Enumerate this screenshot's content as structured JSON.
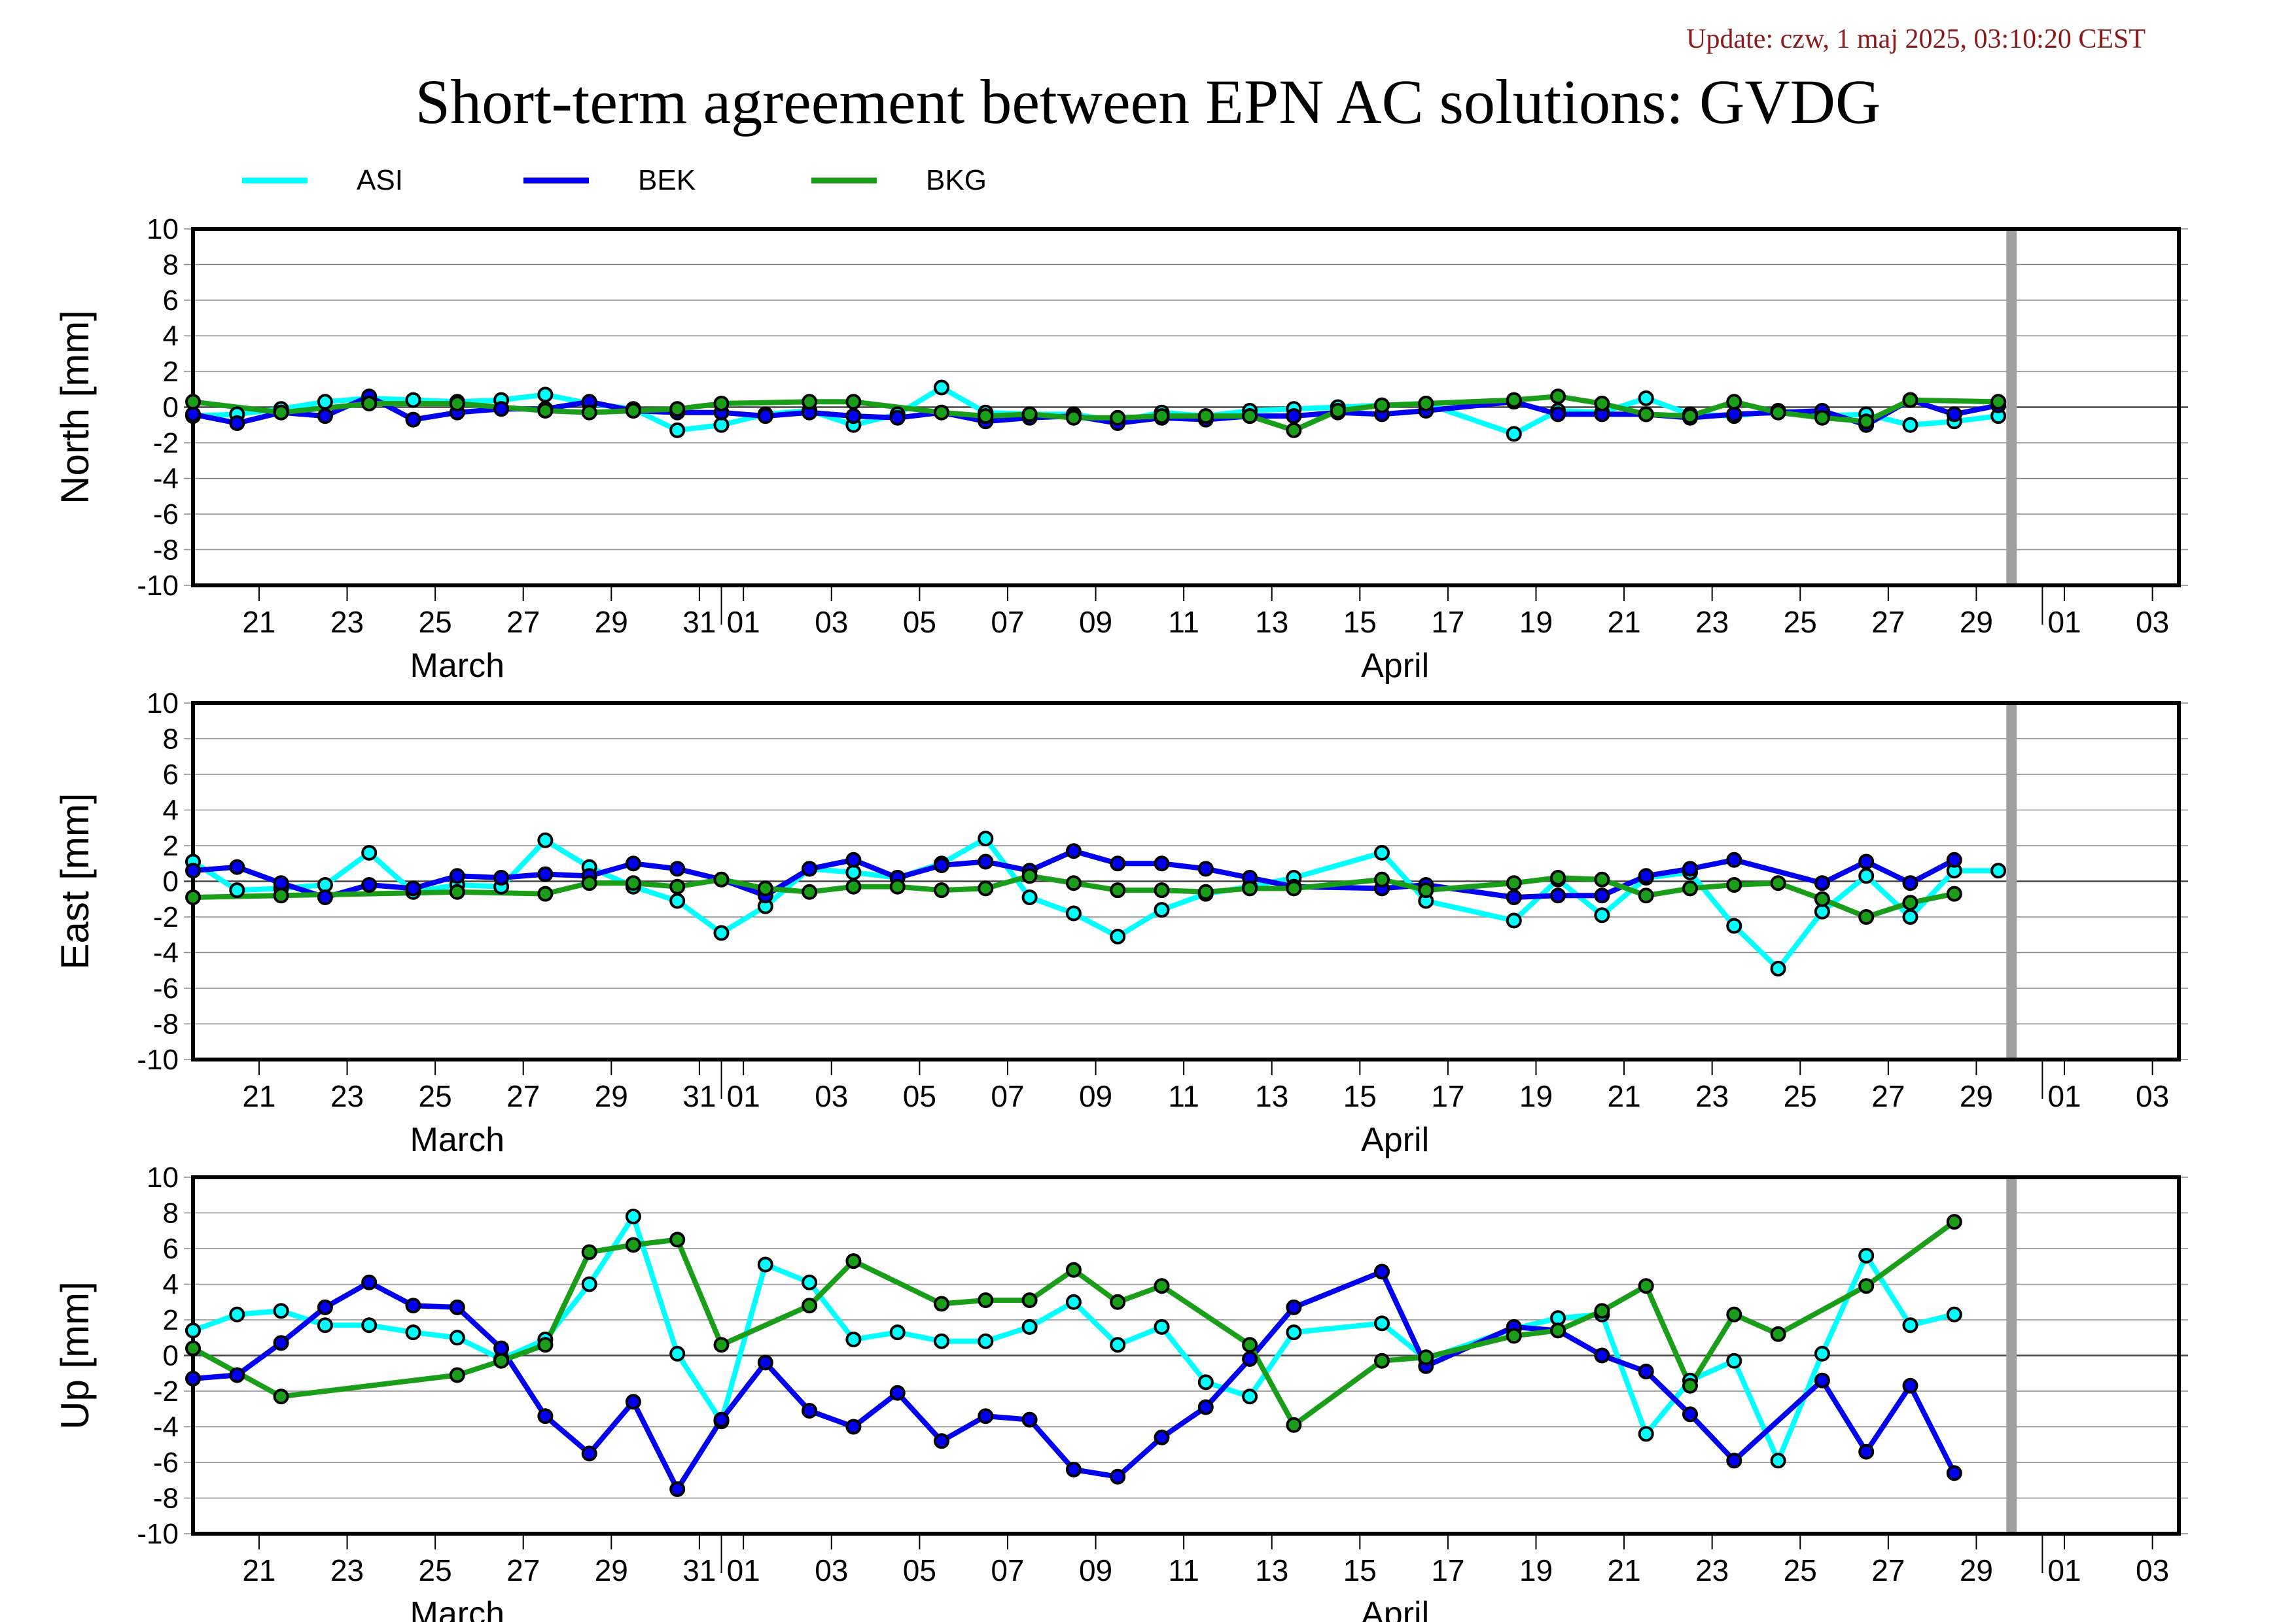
{
  "update_text": "Update: czw, 1 maj 2025, 03:10:20 CEST",
  "title": "Short-term agreement between EPN AC solutions: GVDG",
  "legend": [
    {
      "name": "ASI",
      "color": "#00ffff"
    },
    {
      "name": "BEK",
      "color": "#0000ee"
    },
    {
      "name": "BKG",
      "color": "#1a9e1a"
    }
  ],
  "colors": {
    "marker_outline": "#000000",
    "current_day_bar": "#a0a0a0",
    "grid": "#888888"
  },
  "chart_data": {
    "type": "line",
    "x_unit": "day of year 2025",
    "xlim": [
      78.5,
      123.6
    ],
    "current_day_marker": 119.8,
    "x_ticks": [
      {
        "day": 80,
        "label": "21"
      },
      {
        "day": 82,
        "label": "23"
      },
      {
        "day": 84,
        "label": "25"
      },
      {
        "day": 86,
        "label": "27"
      },
      {
        "day": 88,
        "label": "29"
      },
      {
        "day": 90,
        "label": "31"
      },
      {
        "day": 91,
        "label": "01"
      },
      {
        "day": 93,
        "label": "03"
      },
      {
        "day": 95,
        "label": "05"
      },
      {
        "day": 97,
        "label": "07"
      },
      {
        "day": 99,
        "label": "09"
      },
      {
        "day": 101,
        "label": "11"
      },
      {
        "day": 103,
        "label": "13"
      },
      {
        "day": 105,
        "label": "15"
      },
      {
        "day": 107,
        "label": "17"
      },
      {
        "day": 109,
        "label": "19"
      },
      {
        "day": 111,
        "label": "21"
      },
      {
        "day": 113,
        "label": "23"
      },
      {
        "day": 115,
        "label": "25"
      },
      {
        "day": 117,
        "label": "27"
      },
      {
        "day": 119,
        "label": "29"
      },
      {
        "day": 121,
        "label": "01"
      },
      {
        "day": 123,
        "label": "03"
      }
    ],
    "month_labels": [
      {
        "day": 84.5,
        "label": "March"
      },
      {
        "day": 105.8,
        "label": "April"
      }
    ],
    "panels": [
      {
        "ylabel": "North [mm]",
        "ylim": [
          -10,
          10
        ],
        "y_ticks": [
          10,
          8,
          6,
          4,
          2,
          0,
          -2,
          -4,
          -6,
          -8,
          -10
        ],
        "series": [
          {
            "name": "ASI",
            "x": [
              78.5,
              79.5,
              80.5,
              81.5,
              82.5,
              83.5,
              84.5,
              85.5,
              86.5,
              87.5,
              88.5,
              89.5,
              90.5,
              91.5,
              92.5,
              93.5,
              94.5,
              95.5,
              96.5,
              97.5,
              98.5,
              99.5,
              100.5,
              101.5,
              102.5,
              103.5,
              104.5,
              105.5,
              106.5,
              108.5,
              109.5,
              110.5,
              111.5,
              112.5,
              113.5,
              114.5,
              115.5,
              116.5,
              117.5,
              118.5,
              119.5
            ],
            "y": [
              -0.5,
              -0.4,
              -0.1,
              0.3,
              0.5,
              0.4,
              0.3,
              0.4,
              0.7,
              0.2,
              -0.1,
              -1.3,
              -1.0,
              -0.4,
              -0.2,
              -1.0,
              -0.4,
              1.1,
              -0.3,
              -0.4,
              -0.4,
              -0.8,
              -0.3,
              -0.5,
              -0.2,
              -0.1,
              0.0,
              0.1,
              0.2,
              -1.5,
              -0.2,
              -0.3,
              0.5,
              -0.4,
              -0.5,
              -0.2,
              -0.5,
              -0.4,
              -1.0,
              -0.8,
              -0.5
            ]
          },
          {
            "name": "BEK",
            "x": [
              78.5,
              79.5,
              80.5,
              81.5,
              82.5,
              83.5,
              84.5,
              85.5,
              86.5,
              87.5,
              88.5,
              89.5,
              90.5,
              91.5,
              92.5,
              93.5,
              94.5,
              95.5,
              96.5,
              97.5,
              98.5,
              99.5,
              100.5,
              101.5,
              102.5,
              103.5,
              104.5,
              105.5,
              106.5,
              108.5,
              109.5,
              110.5,
              111.5,
              112.5,
              113.5,
              114.5,
              115.5,
              116.5,
              117.5,
              118.5,
              119.5
            ],
            "y": [
              -0.4,
              -0.9,
              -0.3,
              -0.5,
              0.6,
              -0.7,
              -0.3,
              -0.1,
              -0.1,
              0.3,
              -0.2,
              -0.3,
              -0.3,
              -0.5,
              -0.3,
              -0.5,
              -0.6,
              -0.3,
              -0.8,
              -0.6,
              -0.5,
              -0.9,
              -0.6,
              -0.7,
              -0.5,
              -0.5,
              -0.3,
              -0.4,
              -0.2,
              0.3,
              -0.4,
              -0.4,
              -0.4,
              -0.6,
              -0.4,
              -0.3,
              -0.2,
              -1.0,
              0.4,
              -0.4,
              0.1
            ]
          },
          {
            "name": "BKG",
            "x": [
              78.5,
              80.5,
              82.5,
              84.5,
              86.5,
              87.5,
              88.5,
              89.5,
              90.5,
              92.5,
              93.5,
              95.5,
              96.5,
              97.5,
              98.5,
              99.5,
              100.5,
              101.5,
              102.5,
              103.5,
              104.5,
              105.5,
              106.5,
              108.5,
              109.5,
              110.5,
              111.5,
              112.5,
              113.5,
              114.5,
              115.5,
              116.5,
              117.5,
              119.5
            ],
            "y": [
              0.3,
              -0.3,
              0.2,
              0.2,
              -0.2,
              -0.3,
              -0.2,
              -0.1,
              0.2,
              0.3,
              0.3,
              -0.3,
              -0.5,
              -0.4,
              -0.6,
              -0.6,
              -0.5,
              -0.5,
              -0.5,
              -1.3,
              -0.2,
              0.1,
              0.2,
              0.4,
              0.6,
              0.2,
              -0.4,
              -0.5,
              0.3,
              -0.3,
              -0.6,
              -0.8,
              0.4,
              0.3
            ]
          }
        ]
      },
      {
        "ylabel": "East [mm]",
        "ylim": [
          -10,
          10
        ],
        "y_ticks": [
          10,
          8,
          6,
          4,
          2,
          0,
          -2,
          -4,
          -6,
          -8,
          -10
        ],
        "series": [
          {
            "name": "ASI",
            "x": [
              78.5,
              79.5,
              80.5,
              81.5,
              82.5,
              83.5,
              84.5,
              85.5,
              86.5,
              87.5,
              88.5,
              89.5,
              90.5,
              91.5,
              92.5,
              93.5,
              94.5,
              95.5,
              96.5,
              97.5,
              98.5,
              99.5,
              100.5,
              101.5,
              102.5,
              103.5,
              105.5,
              106.5,
              108.5,
              109.5,
              110.5,
              111.5,
              112.5,
              113.5,
              114.5,
              115.5,
              116.5,
              117.5,
              118.5,
              119.5
            ],
            "y": [
              1.1,
              -0.5,
              -0.4,
              -0.2,
              1.6,
              -0.6,
              -0.2,
              -0.3,
              2.3,
              0.8,
              -0.3,
              -1.1,
              -2.9,
              -1.4,
              0.7,
              0.5,
              0.2,
              1.0,
              2.4,
              -0.9,
              -1.8,
              -3.1,
              -1.6,
              -0.7,
              -0.3,
              0.2,
              1.6,
              -1.1,
              -2.2,
              0.1,
              -1.9,
              0.2,
              0.5,
              -2.5,
              -4.9,
              -1.7,
              0.3,
              -2.0,
              0.6,
              0.6
            ]
          },
          {
            "name": "BEK",
            "x": [
              78.5,
              79.5,
              80.5,
              81.5,
              82.5,
              83.5,
              84.5,
              85.5,
              86.5,
              87.5,
              88.5,
              89.5,
              90.5,
              91.5,
              92.5,
              93.5,
              94.5,
              95.5,
              96.5,
              97.5,
              98.5,
              99.5,
              100.5,
              101.5,
              102.5,
              103.5,
              105.5,
              106.5,
              108.5,
              109.5,
              110.5,
              111.5,
              112.5,
              113.5,
              115.5,
              116.5,
              117.5,
              118.5
            ],
            "y": [
              0.6,
              0.8,
              -0.1,
              -0.9,
              -0.2,
              -0.4,
              0.3,
              0.2,
              0.4,
              0.3,
              1.0,
              0.7,
              0.1,
              -0.8,
              0.7,
              1.2,
              0.2,
              0.9,
              1.1,
              0.6,
              1.7,
              1.0,
              1.0,
              0.7,
              0.2,
              -0.3,
              -0.4,
              -0.2,
              -0.9,
              -0.8,
              -0.8,
              0.3,
              0.7,
              1.2,
              -0.1,
              1.1,
              -0.1,
              1.2
            ]
          },
          {
            "name": "BKG",
            "x": [
              78.5,
              80.5,
              84.5,
              86.5,
              87.5,
              88.5,
              89.5,
              90.5,
              91.5,
              92.5,
              93.5,
              94.5,
              95.5,
              96.5,
              97.5,
              98.5,
              99.5,
              100.5,
              101.5,
              102.5,
              103.5,
              105.5,
              106.5,
              108.5,
              109.5,
              110.5,
              111.5,
              112.5,
              113.5,
              114.5,
              115.5,
              116.5,
              117.5,
              118.5
            ],
            "y": [
              -0.9,
              -0.8,
              -0.6,
              -0.7,
              -0.1,
              -0.1,
              -0.3,
              0.1,
              -0.4,
              -0.6,
              -0.3,
              -0.3,
              -0.5,
              -0.4,
              0.3,
              -0.1,
              -0.5,
              -0.5,
              -0.6,
              -0.4,
              -0.4,
              0.1,
              -0.5,
              -0.1,
              0.2,
              0.1,
              -0.8,
              -0.4,
              -0.2,
              -0.1,
              -1.0,
              -2.0,
              -1.2,
              -0.7
            ]
          }
        ]
      },
      {
        "ylabel": "Up [mm]",
        "ylim": [
          -10,
          10
        ],
        "y_ticks": [
          10,
          8,
          6,
          4,
          2,
          0,
          -2,
          -4,
          -6,
          -8,
          -10
        ],
        "series": [
          {
            "name": "ASI",
            "x": [
              78.5,
              79.5,
              80.5,
              81.5,
              82.5,
              83.5,
              84.5,
              85.5,
              86.5,
              87.5,
              88.5,
              89.5,
              90.5,
              91.5,
              92.5,
              93.5,
              94.5,
              95.5,
              96.5,
              97.5,
              98.5,
              99.5,
              100.5,
              101.5,
              102.5,
              103.5,
              105.5,
              106.5,
              108.5,
              109.5,
              110.5,
              111.5,
              112.5,
              113.5,
              114.5,
              115.5,
              116.5,
              117.5,
              118.5
            ],
            "y": [
              1.4,
              2.3,
              2.5,
              1.7,
              1.7,
              1.3,
              1.0,
              -0.2,
              0.9,
              4.0,
              7.8,
              0.1,
              -3.7,
              5.1,
              4.1,
              0.9,
              1.3,
              0.8,
              0.8,
              1.6,
              3.0,
              0.6,
              1.6,
              -1.5,
              -2.3,
              1.3,
              1.8,
              -0.2,
              1.5,
              2.1,
              2.3,
              -4.4,
              -1.4,
              -0.3,
              -5.9,
              0.1,
              5.6,
              1.7,
              2.3
            ]
          },
          {
            "name": "BEK",
            "x": [
              78.5,
              79.5,
              80.5,
              81.5,
              82.5,
              83.5,
              84.5,
              85.5,
              86.5,
              87.5,
              88.5,
              89.5,
              90.5,
              91.5,
              92.5,
              93.5,
              94.5,
              95.5,
              96.5,
              97.5,
              98.5,
              99.5,
              100.5,
              101.5,
              102.5,
              103.5,
              105.5,
              106.5,
              108.5,
              109.5,
              110.5,
              111.5,
              112.5,
              113.5,
              115.5,
              116.5,
              117.5,
              118.5
            ],
            "y": [
              -1.3,
              -1.1,
              0.7,
              2.7,
              4.1,
              2.8,
              2.7,
              0.4,
              -3.4,
              -5.5,
              -2.6,
              -7.5,
              -3.6,
              -0.4,
              -3.1,
              -4.0,
              -2.1,
              -4.8,
              -3.4,
              -3.6,
              -6.4,
              -6.8,
              -4.6,
              -2.9,
              -0.2,
              2.7,
              4.7,
              -0.6,
              1.6,
              1.4,
              0.0,
              -0.9,
              -3.3,
              -5.9,
              -1.4,
              -5.4,
              -1.7,
              -6.6
            ]
          },
          {
            "name": "BKG",
            "x": [
              78.5,
              80.5,
              84.5,
              85.5,
              86.5,
              87.5,
              88.5,
              89.5,
              90.5,
              92.5,
              93.5,
              95.5,
              96.5,
              97.5,
              98.5,
              99.5,
              100.5,
              102.5,
              103.5,
              105.5,
              106.5,
              108.5,
              109.5,
              110.5,
              111.5,
              112.5,
              113.5,
              114.5,
              116.5,
              118.5
            ],
            "y": [
              0.4,
              -2.3,
              -1.1,
              -0.3,
              0.6,
              5.8,
              6.2,
              6.5,
              0.6,
              2.8,
              5.3,
              2.9,
              3.1,
              3.1,
              4.8,
              3.0,
              3.9,
              0.6,
              -3.9,
              -0.3,
              -0.1,
              1.1,
              1.4,
              2.5,
              3.9,
              -1.7,
              2.3,
              1.2,
              3.9,
              7.5
            ]
          }
        ]
      }
    ]
  }
}
